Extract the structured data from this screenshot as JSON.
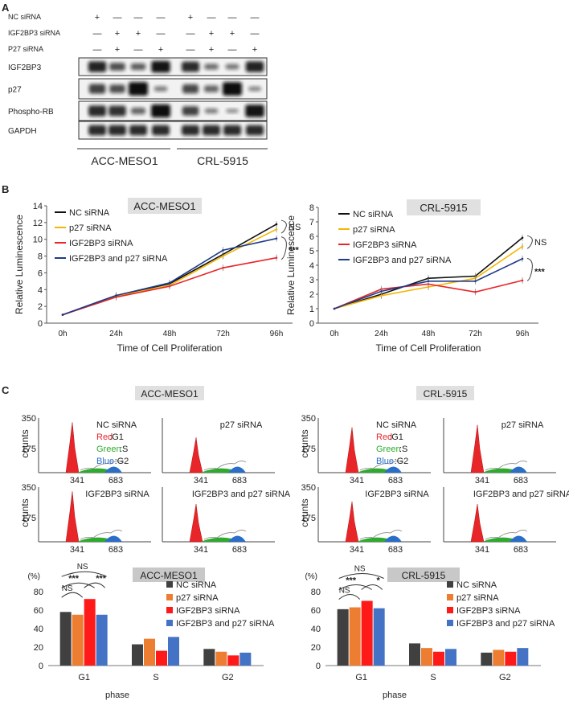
{
  "panels": {
    "a": "A",
    "b": "B",
    "c": "C"
  },
  "western": {
    "conditions": [
      {
        "label": "NC siRNA",
        "marks": [
          "+",
          "—",
          "—",
          "—",
          "+",
          "—",
          "—",
          "—"
        ]
      },
      {
        "label": "IGF2BP3 siRNA",
        "marks": [
          "—",
          "+",
          "+",
          "—",
          "—",
          "+",
          "+",
          "—"
        ]
      },
      {
        "label": "P27 siRNA",
        "marks": [
          "—",
          "+",
          "—",
          "+",
          "—",
          "+",
          "—",
          "+"
        ]
      }
    ],
    "blots": [
      {
        "label": "IGF2BP3",
        "intensity": [
          0.85,
          0.55,
          0.45,
          0.95,
          0.8,
          0.35,
          0.3,
          0.85
        ]
      },
      {
        "label": "p27",
        "intensity": [
          0.65,
          0.55,
          1.0,
          0.25,
          0.6,
          0.4,
          1.0,
          0.2
        ]
      },
      {
        "label": "Phospho-RB",
        "intensity": [
          0.8,
          0.75,
          0.4,
          1.0,
          0.65,
          0.25,
          0.15,
          0.95
        ]
      },
      {
        "label": "GAPDH",
        "intensity": [
          0.8,
          0.8,
          0.8,
          0.8,
          0.8,
          0.8,
          0.8,
          0.8
        ]
      }
    ],
    "cell_lines": [
      "ACC-MESO1",
      "CRL-5915"
    ]
  },
  "chart_data": [
    {
      "type": "line",
      "title": "ACC-MESO1",
      "xlabel": "Time of Cell Proliferation",
      "ylabel": "Relative Luminescence",
      "categories": [
        "0h",
        "24h",
        "48h",
        "72h",
        "96h"
      ],
      "ylim": [
        0,
        14
      ],
      "yticks": [
        "0",
        "2",
        "4",
        "6",
        "8",
        "10",
        "12",
        "14"
      ],
      "series": [
        {
          "name": "NC siRNA",
          "color": "#111111",
          "values": [
            1,
            3.3,
            4.7,
            8.2,
            11.8
          ]
        },
        {
          "name": "p27 siRNA",
          "color": "#f2b705",
          "values": [
            1,
            3.2,
            4.5,
            8.0,
            11.2
          ]
        },
        {
          "name": "IGF2BP3 siRNA",
          "color": "#e8262a",
          "values": [
            1,
            3.1,
            4.4,
            6.6,
            7.8
          ]
        },
        {
          "name": "IGF2BP3 and p27 siRNA",
          "color": "#1f3b8a",
          "values": [
            1,
            3.3,
            4.8,
            8.7,
            10.1
          ]
        }
      ],
      "annotations": [
        "NS",
        "***"
      ]
    },
    {
      "type": "line",
      "title": "CRL-5915",
      "xlabel": "Time of Cell Proliferation",
      "ylabel": "Relative Luminescence",
      "categories": [
        "0h",
        "24h",
        "48h",
        "72h",
        "96h"
      ],
      "ylim": [
        0,
        8
      ],
      "yticks": [
        "0",
        "1",
        "2",
        "3",
        "4",
        "5",
        "6",
        "7",
        "8"
      ],
      "series": [
        {
          "name": "NC siRNA",
          "color": "#111111",
          "values": [
            1,
            2.0,
            3.1,
            3.25,
            5.9
          ]
        },
        {
          "name": "p27 siRNA",
          "color": "#f2b705",
          "values": [
            1,
            1.9,
            2.5,
            3.1,
            5.3
          ]
        },
        {
          "name": "IGF2BP3 siRNA",
          "color": "#e8262a",
          "values": [
            1,
            2.35,
            2.7,
            2.15,
            2.95
          ]
        },
        {
          "name": "IGF2BP3 and p27 siRNA",
          "color": "#1f3b8a",
          "values": [
            1,
            2.2,
            2.9,
            2.9,
            4.45
          ]
        }
      ],
      "annotations": [
        "NS",
        "***"
      ]
    },
    {
      "type": "bar",
      "title": "ACC-MESO1",
      "xlabel": "phase",
      "ylabel": "(%)",
      "categories": [
        "G1",
        "S",
        "G2"
      ],
      "ylim": [
        0,
        80
      ],
      "yticks": [
        "0",
        "20",
        "40",
        "60",
        "80"
      ],
      "series": [
        {
          "name": "NC siRNA",
          "color": "#404040",
          "values": [
            58,
            23,
            18
          ]
        },
        {
          "name": "p27 siRNA",
          "color": "#ed7d31",
          "values": [
            55,
            29,
            15
          ]
        },
        {
          "name": "IGF2BP3 siRNA",
          "color": "#ff1a1a",
          "values": [
            72,
            16,
            11
          ]
        },
        {
          "name": "IGF2BP3 and p27 siRNA",
          "color": "#4472c4",
          "values": [
            55,
            31,
            14
          ]
        }
      ],
      "annotations": [
        "NS",
        "***",
        "***",
        "NS"
      ]
    },
    {
      "type": "bar",
      "title": "CRL-5915",
      "xlabel": "phase",
      "ylabel": "(%)",
      "categories": [
        "G1",
        "S",
        "G2"
      ],
      "ylim": [
        0,
        80
      ],
      "yticks": [
        "0",
        "20",
        "40",
        "60",
        "80"
      ],
      "series": [
        {
          "name": "NC siRNA",
          "color": "#404040",
          "values": [
            61,
            24,
            14
          ]
        },
        {
          "name": "p27 siRNA",
          "color": "#ed7d31",
          "values": [
            63,
            19,
            17
          ]
        },
        {
          "name": "IGF2BP3 siRNA",
          "color": "#ff1a1a",
          "values": [
            70,
            15,
            15
          ]
        },
        {
          "name": "IGF2BP3 and p27 siRNA",
          "color": "#4472c4",
          "values": [
            62,
            18,
            19
          ]
        }
      ],
      "annotations": [
        "NS",
        "***",
        "*",
        "NS"
      ]
    }
  ],
  "flow": {
    "groups": [
      {
        "title": "ACC-MESO1",
        "plots": [
          {
            "label": "NC siRNA",
            "legend": true,
            "g1": 1.0
          },
          {
            "label": "p27  siRNA",
            "legend": false,
            "g1": 0.7
          },
          {
            "label": "IGF2BP3 siRNA",
            "legend": false,
            "g1": 1.0
          },
          {
            "label": "IGF2BP3 and p27 siRNA",
            "legend": false,
            "g1": 0.75
          }
        ]
      },
      {
        "title": "CRL-5915",
        "plots": [
          {
            "label": "NC siRNA",
            "legend": true,
            "g1": 0.9
          },
          {
            "label": "p27 siRNA",
            "legend": false,
            "g1": 0.95
          },
          {
            "label": "IGF2BP3 siRNA",
            "legend": false,
            "g1": 0.8
          },
          {
            "label": "IGF2BP3 and p27 siRNA",
            "legend": false,
            "g1": 0.75
          }
        ]
      }
    ],
    "ymax": "350",
    "ymid": "175",
    "ylabel": "counts",
    "xt1": "341",
    "xt2": "683",
    "legend": [
      {
        "name": "Red",
        "phase": "G1",
        "color": "#e8262a"
      },
      {
        "name": "Green",
        "phase": "S",
        "color": "#2eaa2e"
      },
      {
        "name": "Blue",
        "phase": "G2",
        "color": "#2a6ec8"
      }
    ]
  }
}
